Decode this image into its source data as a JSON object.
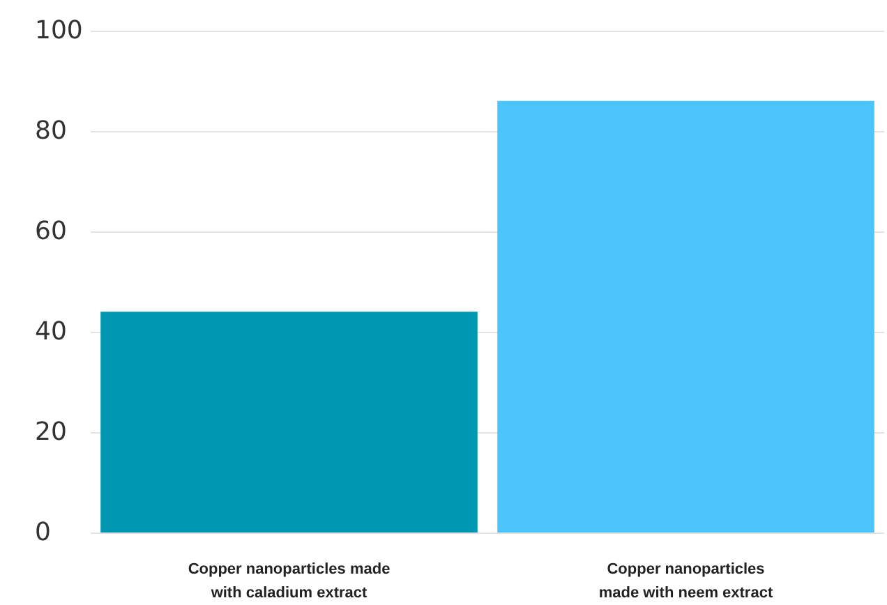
{
  "chart_data": {
    "type": "bar",
    "categories": [
      "Copper nanoparticles made\nwith caladium extract",
      "Copper nanoparticles\nmade with neem extract"
    ],
    "values": [
      44,
      86
    ],
    "colors": [
      "#0097b2",
      "#4cc4fc"
    ],
    "ylim": [
      0,
      100
    ],
    "yticks": [
      0,
      20,
      40,
      60,
      80,
      100
    ],
    "grid": "y"
  }
}
